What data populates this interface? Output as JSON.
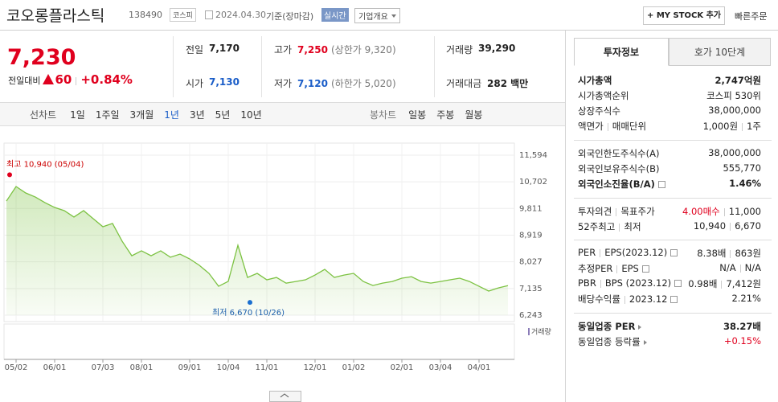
{
  "header": {
    "title": "코오롱플라스틱",
    "code": "138490",
    "market": "코스피",
    "date": "2024.04.30",
    "date_note": "기준(장마감)",
    "realtime": "실시간",
    "company_info": "기업개요",
    "my_stock": "+ MY STOCK 추가",
    "quick_order": "빠른주문"
  },
  "quote": {
    "price": "7,230",
    "change_label": "전일대비",
    "change": "60",
    "change_rate": "+0.84%",
    "color": "#e0001e"
  },
  "summary": [
    [
      {
        "label": "전일",
        "value": "7,170",
        "color": "#222"
      },
      {
        "label": "고가",
        "value": "7,250",
        "note": "(상한가 9,320)",
        "color": "#e0001e"
      },
      {
        "label": "거래량",
        "value": "39,290",
        "color": "#222"
      }
    ],
    [
      {
        "label": "시가",
        "value": "7,130",
        "color": "#1a5dc8"
      },
      {
        "label": "저가",
        "value": "7,120",
        "note": "(하한가 5,020)",
        "color": "#1a5dc8"
      },
      {
        "label": "거래대금",
        "value": "282",
        "unit": "백만",
        "color": "#222"
      }
    ]
  ],
  "period_tabs": {
    "line_label": "선차트",
    "line": [
      "1일",
      "1주일",
      "3개월",
      "1년",
      "3년",
      "5년",
      "10년"
    ],
    "selected": 3,
    "candle_label": "봉차트",
    "candle": [
      "일봉",
      "주봉",
      "월봉"
    ]
  },
  "chart_data": {
    "type": "line",
    "color": "#7cc242",
    "grid": true,
    "x": [
      null,
      "05/02",
      null,
      null,
      null,
      "06/01",
      null,
      null,
      null,
      null,
      "07/03",
      null,
      null,
      null,
      "08/01",
      null,
      null,
      null,
      null,
      "09/01",
      null,
      null,
      null,
      "10/04",
      null,
      null,
      null,
      "11/01",
      null,
      null,
      null,
      null,
      "12/01",
      null,
      null,
      null,
      "01/02",
      null,
      null,
      null,
      null,
      "02/01",
      null,
      null,
      null,
      "03/04",
      null,
      null,
      null,
      "04/01",
      null,
      null,
      null
    ],
    "values": [
      10060,
      10545,
      10330,
      10195,
      10005,
      9845,
      9740,
      9525,
      9740,
      9470,
      9200,
      9310,
      8715,
      8230,
      8395,
      8230,
      8395,
      8180,
      8285,
      8125,
      7910,
      7640,
      7210,
      7375,
      8580,
      7505,
      7640,
      7425,
      7505,
      7315,
      7370,
      7425,
      7585,
      7775,
      7505,
      7585,
      7640,
      7370,
      7235,
      7315,
      7370,
      7480,
      7530,
      7370,
      7315,
      7370,
      7425,
      7480,
      7370,
      7210,
      7050,
      7155,
      7230
    ],
    "ylim": [
      6243,
      11594
    ],
    "yticks": [
      {
        "value": 6243,
        "label": "6,243"
      },
      {
        "value": 7135,
        "label": "7,135"
      },
      {
        "value": 8027,
        "label": "8,027"
      },
      {
        "value": 8919,
        "label": "8,919"
      },
      {
        "value": 9811,
        "label": "9,811"
      },
      {
        "value": 10702,
        "label": "10,702"
      },
      {
        "value": 11594,
        "label": "11,594"
      }
    ],
    "high": 10940,
    "high_label": "최고 10,940 (05/04)",
    "low": 6670,
    "low_label": "최저 6,670 (10/26)",
    "volume_label": "거래량"
  },
  "side_panel": {
    "tabs": [
      "투자정보",
      "호가 10단계"
    ],
    "selected_tab": 0,
    "accent": "#e0001e",
    "sections": [
      {
        "rows": [
          {
            "labels": [
              "시가총액"
            ],
            "values": [
              "2,747억원"
            ],
            "bold": true
          },
          {
            "labels": [
              "시가총액순위"
            ],
            "values": [
              "코스피 530위"
            ]
          },
          {
            "labels": [
              "상장주식수"
            ],
            "values": [
              "38,000,000"
            ]
          },
          {
            "labels": [
              "액면가",
              "매매단위"
            ],
            "values": [
              "1,000원",
              "1주"
            ]
          }
        ]
      },
      {
        "rows": [
          {
            "labels": [
              "외국인한도주식수(A)"
            ],
            "values": [
              "38,000,000"
            ]
          },
          {
            "labels": [
              "외국인보유주식수(B)"
            ],
            "values": [
              "555,770"
            ]
          },
          {
            "labels": [
              "외국인소진율(B/A)"
            ],
            "values": [
              "1.46%"
            ],
            "bold": true,
            "info": true
          }
        ]
      },
      {
        "rows": [
          {
            "labels": [
              "투자의견",
              "목표주가"
            ],
            "values": [
              "4.00매수",
              "11,000"
            ],
            "accent": 0
          },
          {
            "labels": [
              "52주최고",
              "최저"
            ],
            "values": [
              "10,940",
              "6,670"
            ]
          }
        ]
      },
      {
        "rows": [
          {
            "labels": [
              "PER",
              "EPS(2023.12)"
            ],
            "values": [
              "8.38배",
              "863원"
            ],
            "info": true
          },
          {
            "labels": [
              "추정PER",
              "EPS"
            ],
            "values": [
              "N/A",
              "N/A"
            ],
            "info": true
          },
          {
            "labels": [
              "PBR",
              "BPS (2023.12)"
            ],
            "values": [
              "0.98배",
              "7,412원"
            ],
            "info": true
          },
          {
            "labels": [
              "배당수익률",
              "2023.12"
            ],
            "values": [
              "2.21%"
            ],
            "info": true
          }
        ]
      },
      {
        "rows": [
          {
            "labels": [
              "동일업종 PER"
            ],
            "values": [
              "38.27배"
            ],
            "bold": true,
            "arrow": true
          },
          {
            "labels": [
              "동일업종 등락률"
            ],
            "values": [
              "+0.15%"
            ],
            "accent": 0,
            "arrow": true
          }
        ]
      }
    ]
  }
}
